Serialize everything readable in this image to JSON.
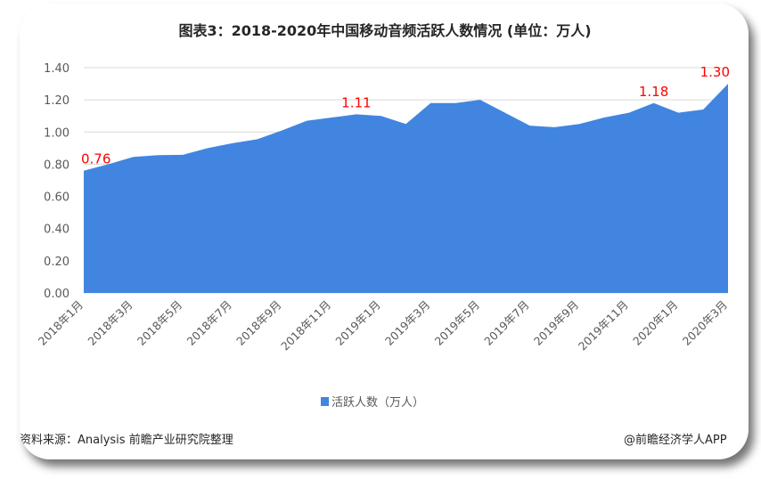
{
  "chart_data": {
    "type": "area",
    "title": "图表3：2018-2020年中国移动音频活跃人数情况 (单位：万人)",
    "x": [
      "2018年1月",
      "2018年2月",
      "2018年3月",
      "2018年4月",
      "2018年5月",
      "2018年6月",
      "2018年7月",
      "2018年8月",
      "2018年9月",
      "2018年10月",
      "2018年11月",
      "2018年12月",
      "2019年1月",
      "2019年2月",
      "2019年3月",
      "2019年4月",
      "2019年5月",
      "2019年6月",
      "2019年7月",
      "2019年8月",
      "2019年9月",
      "2019年10月",
      "2019年11月",
      "2019年12月",
      "2020年1月",
      "2020年2月",
      "2020年3月"
    ],
    "x_tick_labels": [
      "2018年1月",
      "2018年3月",
      "2018年5月",
      "2018年7月",
      "2018年9月",
      "2018年11月",
      "2019年1月",
      "2019年3月",
      "2019年5月",
      "2019年7月",
      "2019年9月",
      "2019年11月",
      "2020年1月",
      "2020年3月"
    ],
    "series": [
      {
        "name": "活跃人数（万人）",
        "color": "#4185e0",
        "values": [
          0.76,
          0.8,
          0.845,
          0.856,
          0.858,
          0.9,
          0.93,
          0.955,
          1.01,
          1.07,
          1.09,
          1.11,
          1.1,
          1.05,
          1.18,
          1.18,
          1.2,
          1.12,
          1.04,
          1.03,
          1.05,
          1.09,
          1.12,
          1.18,
          1.12,
          1.14,
          1.3
        ]
      }
    ],
    "data_labels": [
      {
        "index": 0,
        "text": "0.76"
      },
      {
        "index": 11,
        "text": "1.11"
      },
      {
        "index": 23,
        "text": "1.18"
      },
      {
        "index": 26,
        "text": "1.30"
      }
    ],
    "data_label_color": "#ff0000",
    "y_tick_labels": [
      "0.00",
      "0.20",
      "0.40",
      "0.60",
      "0.80",
      "1.00",
      "1.20",
      "1.40"
    ],
    "ylim": [
      0,
      1.4
    ],
    "grid": true,
    "legend": "bottom"
  },
  "footer": {
    "source": "资料来源：Analysis 前瞻产业研究院整理",
    "credit": "@前瞻经济学人APP"
  }
}
